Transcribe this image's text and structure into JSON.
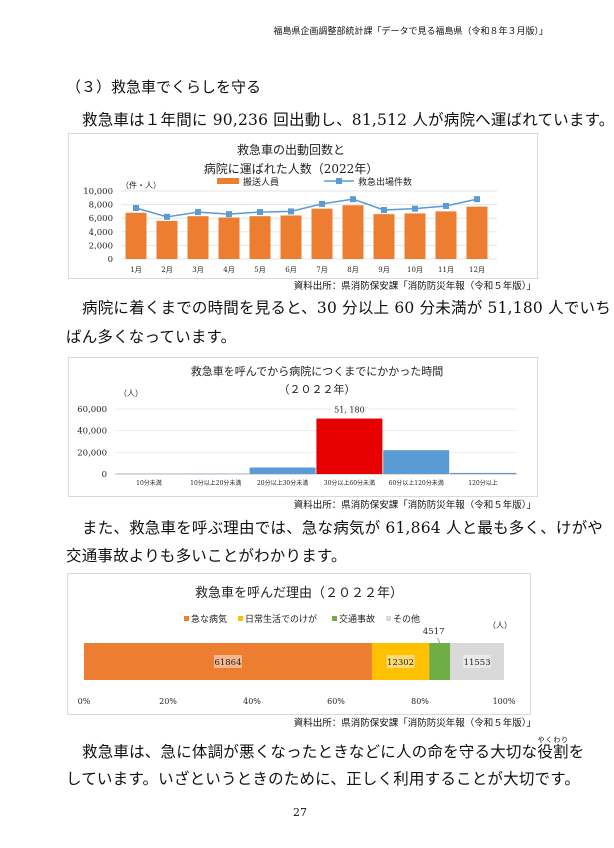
{
  "header": "福島県企画調整部統計課「データで見る福島県（令和８年３月版）」",
  "section_title": "（３）救急車でくらしを守る",
  "paragraphs": {
    "p1": "救急車は１年間に 90,236 回出動し、81,512 人が病院へ運ばれています。",
    "p2a": "病院に着くまでの時間を見ると、30 分以上 60 分未満が 51,180 人でいち",
    "p2b": "ばん多くなっています。",
    "p3a": "また、救急車を呼ぶ理由では、急な病気が 61,864 人と最も多く、けがや",
    "p3b": "交通事故よりも多いことがわかります。",
    "p4a_pre": "救急車は、急に体調が悪くなったときなどに人の命を守る大切な",
    "p4a_ruby_base": "役割",
    "p4a_ruby_text": "やくわり",
    "p4a_post": "を",
    "p4b": "しています。いざというときのために、正しく利用することが大切です。"
  },
  "source_note": "資料出所：県消防保安課「消防防災年報（令和５年版）」",
  "page_number": "27",
  "chart_data": [
    {
      "type": "bar+line",
      "title": [
        "救急車の出動回数と",
        "病院に運ばれた人数（2022年）"
      ],
      "ylabel": "（件・人）",
      "ylim": [
        0,
        10000
      ],
      "yticks": [
        "0",
        "2,000",
        "4,000",
        "6,000",
        "8,000",
        "10,000"
      ],
      "categories": [
        "1月",
        "2月",
        "3月",
        "4月",
        "5月",
        "6月",
        "7月",
        "8月",
        "9月",
        "10月",
        "11月",
        "12月"
      ],
      "series": [
        {
          "name": "搬送人員",
          "type": "bar",
          "color": "#ed7d31",
          "values": [
            6800,
            5600,
            6300,
            6100,
            6300,
            6400,
            7400,
            7900,
            6600,
            6700,
            7000,
            7700
          ]
        },
        {
          "name": "救急出場件数",
          "type": "line",
          "color": "#5b9bd5",
          "values": [
            7500,
            6200,
            6900,
            6600,
            6900,
            7000,
            8100,
            8800,
            7200,
            7400,
            7800,
            8800
          ]
        }
      ],
      "legend": "top",
      "grid": true
    },
    {
      "type": "bar",
      "title": [
        "救急車を呼んでから病院につくまでにかかった時間",
        "（２０２２年）"
      ],
      "ylabel": "（人）",
      "ylim": [
        0,
        60000
      ],
      "yticks": [
        "0",
        "20,000",
        "40,000",
        "60,000"
      ],
      "categories": [
        "10分未満",
        "10分以上20分未満",
        "20分以上30分未満",
        "30分以上60分未満",
        "60分以上120分未満",
        "120分以上"
      ],
      "values": [
        200,
        300,
        6000,
        51180,
        22000,
        1000
      ],
      "colors": [
        "#5b9bd5",
        "#5b9bd5",
        "#5b9bd5",
        "#e60000",
        "#5b9bd5",
        "#5b9bd5"
      ],
      "data_labels": {
        "3": "51, 180"
      },
      "grid": true
    },
    {
      "type": "stacked-bar-100",
      "title": "救急車を呼んだ理由（２０２２年）",
      "unit": "（人）",
      "xticks": [
        "0%",
        "20%",
        "40%",
        "60%",
        "80%",
        "100%"
      ],
      "series": [
        {
          "name": "急な病気",
          "value": 61864,
          "color": "#ed7d31",
          "label": "61864"
        },
        {
          "name": "日常生活でのけが",
          "value": 12302,
          "color": "#ffc000",
          "label": "12302"
        },
        {
          "name": "交通事故",
          "value": 4517,
          "color": "#70ad47",
          "label": "4517"
        },
        {
          "name": "その他",
          "value": 11553,
          "color": "#d9d9d9",
          "label": "11553"
        }
      ],
      "legend": "top"
    }
  ]
}
